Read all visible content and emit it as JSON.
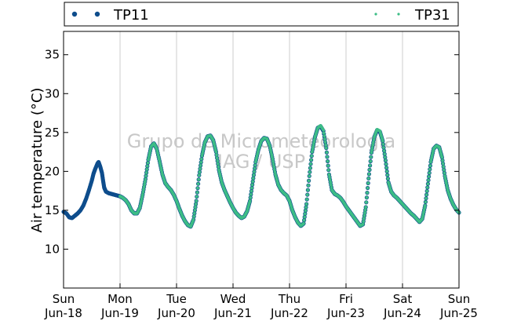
{
  "chart_data": {
    "type": "scatter",
    "ylabel": "Air temperature (°C)",
    "ylim": [
      5,
      38
    ],
    "yticks": [
      10,
      15,
      20,
      25,
      30,
      35
    ],
    "xlim": [
      0,
      7
    ],
    "xticks": [
      {
        "day": "Sun",
        "date": "Jun-18"
      },
      {
        "day": "Mon",
        "date": "Jun-19"
      },
      {
        "day": "Tue",
        "date": "Jun-20"
      },
      {
        "day": "Wed",
        "date": "Jun-21"
      },
      {
        "day": "Thu",
        "date": "Jun-22"
      },
      {
        "day": "Fri",
        "date": "Jun-23"
      },
      {
        "day": "Sat",
        "date": "Jun-24"
      },
      {
        "day": "Sun",
        "date": "Jun-25"
      }
    ],
    "grid": "vertical",
    "legend_placement": "top",
    "watermark": [
      "Grupo de Micrometeorologia",
      "IAG / USP"
    ],
    "series": [
      {
        "name": "TP11",
        "color": "#0e4d8c",
        "marker": "circle",
        "points": [
          [
            0.0,
            14.8
          ],
          [
            0.05,
            14.6
          ],
          [
            0.1,
            14.1
          ],
          [
            0.15,
            14.0
          ],
          [
            0.2,
            14.3
          ],
          [
            0.25,
            14.6
          ],
          [
            0.3,
            15.0
          ],
          [
            0.35,
            15.6
          ],
          [
            0.4,
            16.5
          ],
          [
            0.45,
            17.6
          ],
          [
            0.5,
            18.8
          ],
          [
            0.53,
            19.7
          ],
          [
            0.56,
            20.3
          ],
          [
            0.6,
            21.0
          ],
          [
            0.62,
            21.2
          ],
          [
            0.65,
            20.6
          ],
          [
            0.68,
            19.8
          ],
          [
            0.7,
            18.8
          ],
          [
            0.72,
            17.9
          ],
          [
            0.75,
            17.4
          ],
          [
            0.8,
            17.2
          ],
          [
            0.85,
            17.1
          ],
          [
            0.9,
            17.0
          ],
          [
            0.95,
            16.9
          ],
          [
            1.0,
            16.8
          ],
          [
            1.05,
            16.6
          ],
          [
            1.1,
            16.3
          ],
          [
            1.15,
            15.8
          ],
          [
            1.2,
            15.0
          ],
          [
            1.25,
            14.6
          ],
          [
            1.3,
            14.6
          ],
          [
            1.35,
            15.3
          ],
          [
            1.4,
            17.0
          ],
          [
            1.45,
            19.0
          ],
          [
            1.5,
            21.5
          ],
          [
            1.55,
            23.2
          ],
          [
            1.6,
            23.6
          ],
          [
            1.65,
            22.9
          ],
          [
            1.7,
            21.3
          ],
          [
            1.75,
            19.6
          ],
          [
            1.8,
            18.5
          ],
          [
            1.85,
            18.0
          ],
          [
            1.9,
            17.6
          ],
          [
            1.95,
            17.0
          ],
          [
            2.0,
            16.2
          ],
          [
            2.05,
            15.2
          ],
          [
            2.1,
            14.3
          ],
          [
            2.15,
            13.6
          ],
          [
            2.2,
            13.1
          ],
          [
            2.25,
            12.9
          ],
          [
            2.3,
            13.8
          ],
          [
            2.35,
            16.2
          ],
          [
            2.4,
            19.5
          ],
          [
            2.45,
            22.0
          ],
          [
            2.5,
            23.7
          ],
          [
            2.55,
            24.5
          ],
          [
            2.6,
            24.6
          ],
          [
            2.65,
            24.0
          ],
          [
            2.7,
            22.5
          ],
          [
            2.75,
            20.2
          ],
          [
            2.8,
            18.6
          ],
          [
            2.85,
            17.6
          ],
          [
            2.9,
            16.8
          ],
          [
            2.95,
            16.0
          ],
          [
            3.0,
            15.3
          ],
          [
            3.05,
            14.7
          ],
          [
            3.1,
            14.3
          ],
          [
            3.15,
            14.0
          ],
          [
            3.2,
            14.2
          ],
          [
            3.25,
            14.9
          ],
          [
            3.3,
            16.2
          ],
          [
            3.35,
            18.7
          ],
          [
            3.4,
            21.2
          ],
          [
            3.45,
            22.8
          ],
          [
            3.5,
            23.9
          ],
          [
            3.55,
            24.3
          ],
          [
            3.6,
            24.2
          ],
          [
            3.65,
            23.3
          ],
          [
            3.7,
            21.6
          ],
          [
            3.75,
            19.6
          ],
          [
            3.8,
            18.3
          ],
          [
            3.85,
            17.6
          ],
          [
            3.9,
            17.2
          ],
          [
            3.95,
            16.9
          ],
          [
            4.0,
            16.2
          ],
          [
            4.05,
            15.0
          ],
          [
            4.1,
            14.1
          ],
          [
            4.15,
            13.4
          ],
          [
            4.2,
            13.0
          ],
          [
            4.25,
            13.3
          ],
          [
            4.3,
            15.8
          ],
          [
            4.35,
            19.4
          ],
          [
            4.4,
            22.5
          ],
          [
            4.45,
            24.4
          ],
          [
            4.5,
            25.6
          ],
          [
            4.55,
            25.8
          ],
          [
            4.6,
            25.2
          ],
          [
            4.65,
            23.0
          ],
          [
            4.7,
            19.6
          ],
          [
            4.75,
            17.6
          ],
          [
            4.8,
            17.1
          ],
          [
            4.85,
            16.9
          ],
          [
            4.9,
            16.6
          ],
          [
            4.95,
            16.1
          ],
          [
            5.0,
            15.5
          ],
          [
            5.05,
            15.0
          ],
          [
            5.1,
            14.5
          ],
          [
            5.15,
            14.0
          ],
          [
            5.2,
            13.5
          ],
          [
            5.25,
            13.0
          ],
          [
            5.3,
            13.2
          ],
          [
            5.35,
            15.4
          ],
          [
            5.4,
            19.1
          ],
          [
            5.45,
            22.4
          ],
          [
            5.5,
            24.4
          ],
          [
            5.55,
            25.3
          ],
          [
            5.6,
            25.1
          ],
          [
            5.65,
            23.9
          ],
          [
            5.7,
            21.4
          ],
          [
            5.75,
            18.6
          ],
          [
            5.8,
            17.4
          ],
          [
            5.85,
            16.9
          ],
          [
            5.9,
            16.6
          ],
          [
            5.95,
            16.2
          ],
          [
            6.0,
            15.8
          ],
          [
            6.05,
            15.4
          ],
          [
            6.1,
            15.0
          ],
          [
            6.15,
            14.6
          ],
          [
            6.2,
            14.3
          ],
          [
            6.25,
            13.9
          ],
          [
            6.3,
            13.5
          ],
          [
            6.35,
            13.9
          ],
          [
            6.4,
            15.6
          ],
          [
            6.45,
            18.4
          ],
          [
            6.5,
            21.2
          ],
          [
            6.55,
            22.9
          ],
          [
            6.6,
            23.3
          ],
          [
            6.65,
            23.1
          ],
          [
            6.7,
            21.8
          ],
          [
            6.75,
            19.4
          ],
          [
            6.8,
            17.6
          ],
          [
            6.85,
            16.5
          ],
          [
            6.9,
            15.7
          ],
          [
            6.95,
            15.1
          ],
          [
            7.0,
            14.7
          ]
        ]
      },
      {
        "name": "TP31",
        "color": "#3dbd86",
        "marker": "circle",
        "points": [
          [
            1.0,
            16.8
          ],
          [
            1.05,
            16.6
          ],
          [
            1.1,
            16.3
          ],
          [
            1.15,
            15.8
          ],
          [
            1.2,
            15.0
          ],
          [
            1.25,
            14.6
          ],
          [
            1.3,
            14.6
          ],
          [
            1.35,
            15.3
          ],
          [
            1.4,
            17.0
          ],
          [
            1.45,
            19.0
          ],
          [
            1.5,
            21.5
          ],
          [
            1.55,
            23.2
          ],
          [
            1.6,
            23.6
          ],
          [
            1.65,
            22.9
          ],
          [
            1.7,
            21.3
          ],
          [
            1.75,
            19.6
          ],
          [
            1.8,
            18.5
          ],
          [
            1.85,
            18.0
          ],
          [
            1.9,
            17.6
          ],
          [
            1.95,
            17.0
          ],
          [
            2.0,
            16.2
          ],
          [
            2.05,
            15.2
          ],
          [
            2.1,
            14.3
          ],
          [
            2.15,
            13.6
          ],
          [
            2.2,
            13.1
          ],
          [
            2.25,
            12.9
          ],
          [
            2.3,
            13.8
          ],
          [
            2.35,
            16.2
          ],
          [
            2.4,
            19.5
          ],
          [
            2.45,
            22.0
          ],
          [
            2.5,
            23.7
          ],
          [
            2.55,
            24.5
          ],
          [
            2.6,
            24.6
          ],
          [
            2.65,
            24.0
          ],
          [
            2.7,
            22.5
          ],
          [
            2.75,
            20.2
          ],
          [
            2.8,
            18.6
          ],
          [
            2.85,
            17.6
          ],
          [
            2.9,
            16.8
          ],
          [
            2.95,
            16.0
          ],
          [
            3.0,
            15.3
          ],
          [
            3.05,
            14.7
          ],
          [
            3.1,
            14.3
          ],
          [
            3.15,
            14.0
          ],
          [
            3.2,
            14.2
          ],
          [
            3.25,
            14.9
          ],
          [
            3.3,
            16.2
          ],
          [
            3.35,
            18.7
          ],
          [
            3.4,
            21.2
          ],
          [
            3.45,
            22.8
          ],
          [
            3.5,
            23.9
          ],
          [
            3.55,
            24.3
          ],
          [
            3.6,
            24.2
          ],
          [
            3.65,
            23.3
          ],
          [
            3.7,
            21.6
          ],
          [
            3.75,
            19.6
          ],
          [
            3.8,
            18.3
          ],
          [
            3.85,
            17.6
          ],
          [
            3.9,
            17.2
          ],
          [
            3.95,
            16.9
          ],
          [
            4.0,
            16.2
          ],
          [
            4.05,
            15.0
          ],
          [
            4.1,
            14.1
          ],
          [
            4.15,
            13.4
          ],
          [
            4.2,
            13.0
          ],
          [
            4.25,
            13.3
          ],
          [
            4.3,
            15.8
          ],
          [
            4.35,
            19.4
          ],
          [
            4.4,
            22.5
          ],
          [
            4.45,
            24.4
          ],
          [
            4.5,
            25.6
          ],
          [
            4.55,
            25.9
          ],
          [
            4.6,
            25.3
          ],
          [
            4.65,
            23.0
          ],
          [
            4.7,
            19.6
          ],
          [
            4.75,
            17.6
          ],
          [
            4.8,
            17.1
          ],
          [
            4.85,
            16.9
          ],
          [
            4.9,
            16.6
          ],
          [
            4.95,
            16.1
          ],
          [
            5.0,
            15.5
          ],
          [
            5.05,
            15.0
          ],
          [
            5.1,
            14.5
          ],
          [
            5.15,
            14.0
          ],
          [
            5.2,
            13.5
          ],
          [
            5.25,
            13.0
          ],
          [
            5.3,
            13.2
          ],
          [
            5.35,
            15.4
          ],
          [
            5.4,
            19.1
          ],
          [
            5.45,
            22.4
          ],
          [
            5.5,
            24.4
          ],
          [
            5.55,
            25.4
          ],
          [
            5.6,
            25.2
          ],
          [
            5.65,
            23.9
          ],
          [
            5.7,
            21.4
          ],
          [
            5.75,
            18.6
          ],
          [
            5.8,
            17.4
          ],
          [
            5.85,
            16.9
          ],
          [
            5.9,
            16.6
          ],
          [
            5.95,
            16.2
          ],
          [
            6.0,
            15.8
          ],
          [
            6.05,
            15.4
          ],
          [
            6.1,
            15.0
          ],
          [
            6.15,
            14.6
          ],
          [
            6.2,
            14.3
          ],
          [
            6.25,
            13.9
          ],
          [
            6.3,
            13.5
          ],
          [
            6.35,
            13.9
          ],
          [
            6.4,
            15.6
          ],
          [
            6.45,
            18.4
          ],
          [
            6.5,
            21.2
          ],
          [
            6.55,
            22.9
          ],
          [
            6.6,
            23.3
          ],
          [
            6.65,
            23.1
          ],
          [
            6.7,
            21.8
          ],
          [
            6.75,
            19.4
          ],
          [
            6.8,
            17.6
          ],
          [
            6.85,
            16.5
          ],
          [
            6.9,
            15.7
          ],
          [
            6.95,
            15.1
          ],
          [
            7.0,
            14.7
          ]
        ]
      }
    ]
  }
}
